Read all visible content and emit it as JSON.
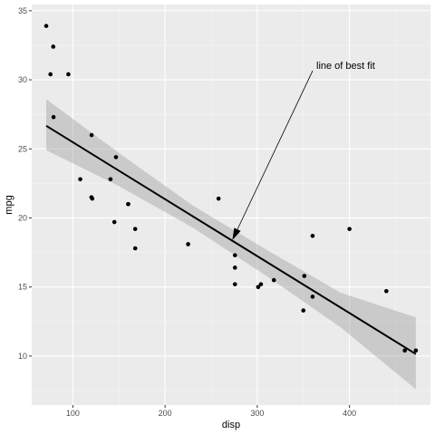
{
  "chart_data": {
    "type": "scatter",
    "title": "",
    "xlabel": "disp",
    "ylabel": "mpg",
    "xlim": [
      55.35,
      487.85
    ],
    "ylim": [
      6.45,
      35.45
    ],
    "x_ticks": [
      100,
      200,
      300,
      400
    ],
    "y_ticks": [
      10,
      15,
      20,
      25,
      30,
      35
    ],
    "x_tick_labels": [
      "100",
      "200",
      "300",
      "400"
    ],
    "y_tick_labels": [
      "10",
      "15",
      "20",
      "25",
      "30",
      "35"
    ],
    "grid": true,
    "legend": "none",
    "colors": {
      "panel_background": "#ebebeb",
      "grid_major": "#ffffff",
      "grid_minor": "#f5f5f5",
      "points": "#000000",
      "fit_line": "#000000",
      "confidence_band": "#999999"
    },
    "points": [
      {
        "x": 160,
        "y": 21.0
      },
      {
        "x": 160,
        "y": 21.0
      },
      {
        "x": 108,
        "y": 22.8
      },
      {
        "x": 258,
        "y": 21.4
      },
      {
        "x": 360,
        "y": 18.7
      },
      {
        "x": 225,
        "y": 18.1
      },
      {
        "x": 360,
        "y": 14.3
      },
      {
        "x": 146.7,
        "y": 24.4
      },
      {
        "x": 140.8,
        "y": 22.8
      },
      {
        "x": 167.6,
        "y": 19.2
      },
      {
        "x": 167.6,
        "y": 17.8
      },
      {
        "x": 275.8,
        "y": 16.4
      },
      {
        "x": 275.8,
        "y": 17.3
      },
      {
        "x": 275.8,
        "y": 15.2
      },
      {
        "x": 472,
        "y": 10.4
      },
      {
        "x": 460,
        "y": 10.4
      },
      {
        "x": 440,
        "y": 14.7
      },
      {
        "x": 78.7,
        "y": 32.4
      },
      {
        "x": 75.7,
        "y": 30.4
      },
      {
        "x": 71.1,
        "y": 33.9
      },
      {
        "x": 120.1,
        "y": 21.5
      },
      {
        "x": 318,
        "y": 15.5
      },
      {
        "x": 304,
        "y": 15.2
      },
      {
        "x": 350,
        "y": 13.3
      },
      {
        "x": 400,
        "y": 19.2
      },
      {
        "x": 79,
        "y": 27.3
      },
      {
        "x": 120.3,
        "y": 26.0
      },
      {
        "x": 95.1,
        "y": 30.4
      },
      {
        "x": 351,
        "y": 15.8
      },
      {
        "x": 145,
        "y": 19.7
      },
      {
        "x": 301,
        "y": 15.0
      },
      {
        "x": 121,
        "y": 21.4
      }
    ],
    "fit": {
      "method": "lm",
      "intercept": 29.5999,
      "slope": -0.04122,
      "x_range": [
        71.1,
        472
      ],
      "band": [
        {
          "x": 71.1,
          "lower": 24.9,
          "upper": 28.6
        },
        {
          "x": 150,
          "lower": 22.3,
          "upper": 24.7
        },
        {
          "x": 230,
          "lower": 19.3,
          "upper": 20.9
        },
        {
          "x": 310,
          "lower": 15.8,
          "upper": 17.7
        },
        {
          "x": 390,
          "lower": 12.1,
          "upper": 14.6
        },
        {
          "x": 472,
          "lower": 7.6,
          "upper": 12.8
        }
      ]
    },
    "annotations": [
      {
        "text": "line of best fit",
        "text_x": 364,
        "text_y": 30.0,
        "arrow_to_x": 273,
        "arrow_to_y": 18.4
      }
    ]
  }
}
